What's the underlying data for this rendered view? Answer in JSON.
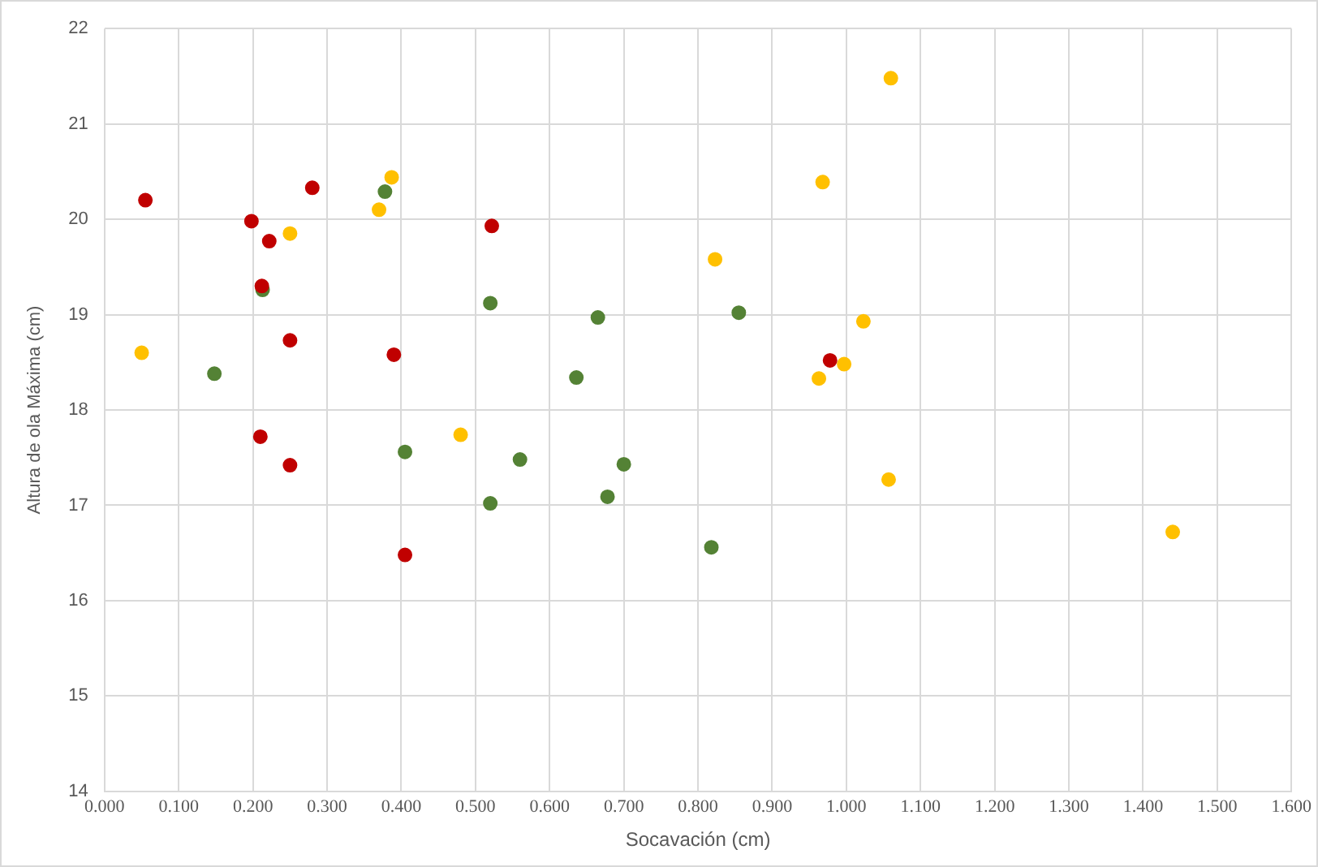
{
  "chart_data": {
    "type": "scatter",
    "xlabel": "Socavación (cm)",
    "ylabel": "Altura de ola Máxima (cm)",
    "xlim": [
      0,
      1.6
    ],
    "xticks": [
      {
        "value": 0,
        "label": "0.000"
      },
      {
        "value": 0.1,
        "label": "0.100"
      },
      {
        "value": 0.2,
        "label": "0.200"
      },
      {
        "value": 0.3,
        "label": "0.300"
      },
      {
        "value": 0.4,
        "label": "0.400"
      },
      {
        "value": 0.5,
        "label": "0.500"
      },
      {
        "value": 0.6,
        "label": "0.600"
      },
      {
        "value": 0.7,
        "label": "0.700"
      },
      {
        "value": 0.8,
        "label": "0.800"
      },
      {
        "value": 0.9,
        "label": "0.900"
      },
      {
        "value": 1,
        "label": "1.000"
      },
      {
        "value": 1.1,
        "label": "1.100"
      },
      {
        "value": 1.2,
        "label": "1.200"
      },
      {
        "value": 1.3,
        "label": "1.300"
      },
      {
        "value": 1.4,
        "label": "1.400"
      },
      {
        "value": 1.5,
        "label": "1.500"
      },
      {
        "value": 1.6,
        "label": "1.600"
      }
    ],
    "ylim": [
      14,
      22
    ],
    "yticks": [
      14,
      15,
      16,
      17,
      18,
      19,
      20,
      21,
      22
    ],
    "grid": true,
    "marker": "circle",
    "legend": false,
    "series": [
      {
        "color": "#c00000",
        "x": [
          0.055,
          0.198,
          0.222,
          0.28,
          0.212,
          0.25,
          0.39,
          0.21,
          0.25,
          0.405,
          0.522,
          0.978
        ],
        "values": [
          20.2,
          19.98,
          19.77,
          20.33,
          19.3,
          18.73,
          18.58,
          17.72,
          17.42,
          16.48,
          19.93,
          18.52
        ]
      },
      {
        "color": "#ffc000",
        "x": [
          0.05,
          0.25,
          0.37,
          0.387,
          0.48,
          0.823,
          0.968,
          1.06,
          0.963,
          0.997,
          1.023,
          1.057,
          1.44
        ],
        "values": [
          18.6,
          19.85,
          20.1,
          20.44,
          17.74,
          19.58,
          20.39,
          21.48,
          18.33,
          18.48,
          18.93,
          17.27,
          16.72
        ]
      },
      {
        "color": "#548235",
        "x": [
          0.148,
          0.213,
          0.378,
          0.405,
          0.52,
          0.52,
          0.56,
          0.636,
          0.665,
          0.678,
          0.7,
          0.818,
          0.855
        ],
        "values": [
          18.38,
          19.26,
          20.29,
          17.56,
          19.12,
          17.02,
          17.48,
          18.34,
          18.97,
          17.09,
          17.43,
          16.56,
          19.02
        ]
      }
    ]
  }
}
